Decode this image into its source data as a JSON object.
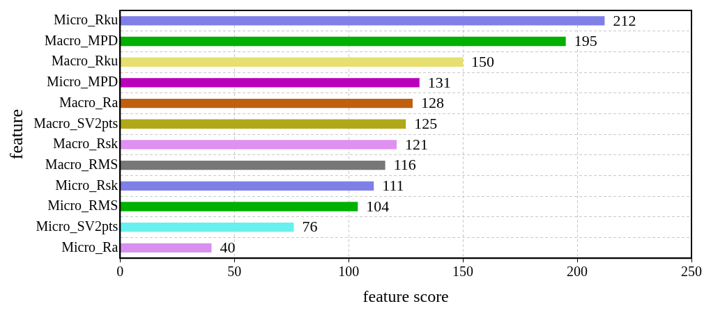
{
  "chart_data": {
    "type": "bar",
    "orientation": "horizontal",
    "xlabel": "feature score",
    "ylabel": "feature",
    "categories": [
      "Micro_Rku",
      "Macro_MPD",
      "Macro_Rku",
      "Micro_MPD",
      "Macro_Ra",
      "Macro_SV2pts",
      "Macro_Rsk",
      "Macro_RMS",
      "Micro_Rsk",
      "Micro_RMS",
      "Micro_SV2pts",
      "Micro_Ra"
    ],
    "values": [
      212,
      195,
      150,
      131,
      128,
      125,
      121,
      116,
      111,
      104,
      76,
      40
    ],
    "colors": [
      "#7f7fe8",
      "#00b000",
      "#e6e070",
      "#bb00bb",
      "#c0600f",
      "#b0a818",
      "#e090f0",
      "#777777",
      "#7f7fe8",
      "#00b000",
      "#66f0f0",
      "#d890f0"
    ],
    "xlim": [
      0,
      250
    ],
    "xticks": [
      0,
      50,
      100,
      150,
      200,
      250
    ],
    "grid": true,
    "line_style": "dashed",
    "data_labels": true,
    "legend": false
  }
}
